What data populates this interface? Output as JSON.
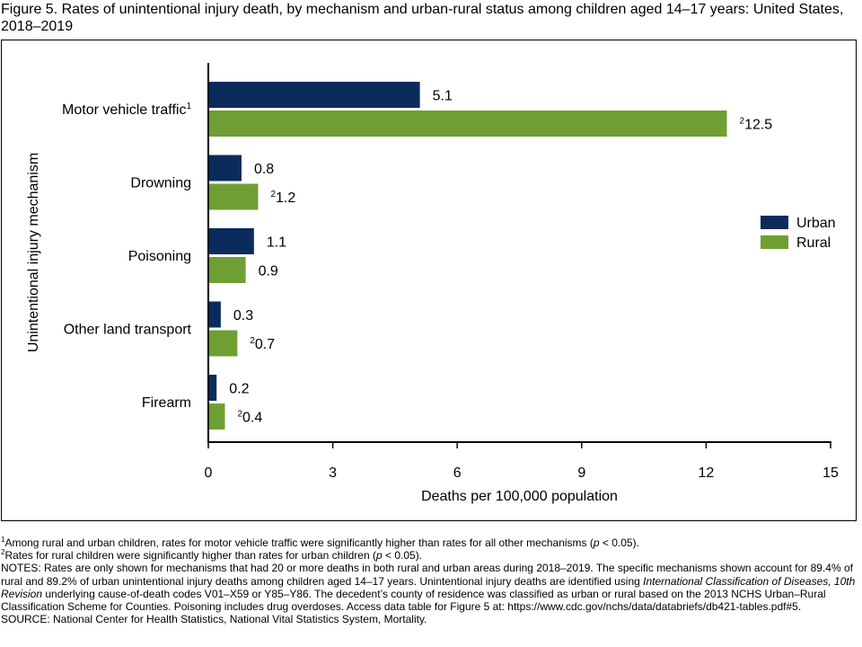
{
  "title": "Figure 5. Rates of unintentional injury death, by mechanism and urban-rural status among children aged 14–17 years: United States, 2018–2019",
  "chart_data": {
    "type": "bar",
    "orientation": "horizontal",
    "categories": [
      "Motor vehicle traffic",
      "Drowning",
      "Poisoning",
      "Other land transport",
      "Firearm"
    ],
    "category_superscripts": [
      "1",
      "",
      "",
      "",
      ""
    ],
    "series": [
      {
        "name": "Urban",
        "color": "#0b2b5c",
        "values": [
          5.1,
          0.8,
          1.1,
          0.3,
          0.2
        ],
        "labels": [
          "5.1",
          "0.8",
          "1.1",
          "0.3",
          "0.2"
        ],
        "label_superscripts": [
          "",
          "",
          "",
          "",
          ""
        ]
      },
      {
        "name": "Rural",
        "color": "#6f9f33",
        "values": [
          12.5,
          1.2,
          0.9,
          0.7,
          0.4
        ],
        "labels": [
          "12.5",
          "1.2",
          "0.9",
          "0.7",
          "0.4"
        ],
        "label_superscripts": [
          "2",
          "2",
          "",
          "2",
          "2"
        ]
      }
    ],
    "xlabel": "Deaths per 100,000 population",
    "ylabel": "Unintentional injury mechanism",
    "xlim": [
      0,
      15
    ],
    "xticks": [
      0,
      3,
      6,
      9,
      12,
      15
    ],
    "legend_position": "right"
  },
  "footnotes": {
    "fn1_mark": "1",
    "fn1_text": "Among rural and urban children, rates for motor vehicle traffic were significantly higher than rates for all other mechanisms (",
    "fn1_p": "p",
    "fn1_end": " < 0.05).",
    "fn2_mark": "2",
    "fn2_text": "Rates for rural children were significantly higher than rates for urban children (",
    "fn2_p": "p",
    "fn2_end": " < 0.05).",
    "notes_a": "NOTES: Rates are only shown for mechanisms that had 20 or more deaths in both rural and urban areas during 2018–2019. The specific mechanisms shown account for 89.4% of rural and 89.2% of urban unintentional injury deaths among children aged 14–17 years. Unintentional injury deaths are identified using ",
    "notes_icd": "International Classification of Diseases, 10th Revision",
    "notes_b": " underlying cause-of-death codes V01–X59 or Y85–Y86. The decedent’s county of residence was classified as urban or rural based on the 2013 NCHS Urban–Rural Classification Scheme for Counties. Poisoning includes drug overdoses. Access data table for Figure 5 at: https://www.cdc.gov/nchs/data/databriefs/db421-tables.pdf#5.",
    "source": "SOURCE: National Center for Health Statistics, National Vital Statistics System, Mortality."
  }
}
